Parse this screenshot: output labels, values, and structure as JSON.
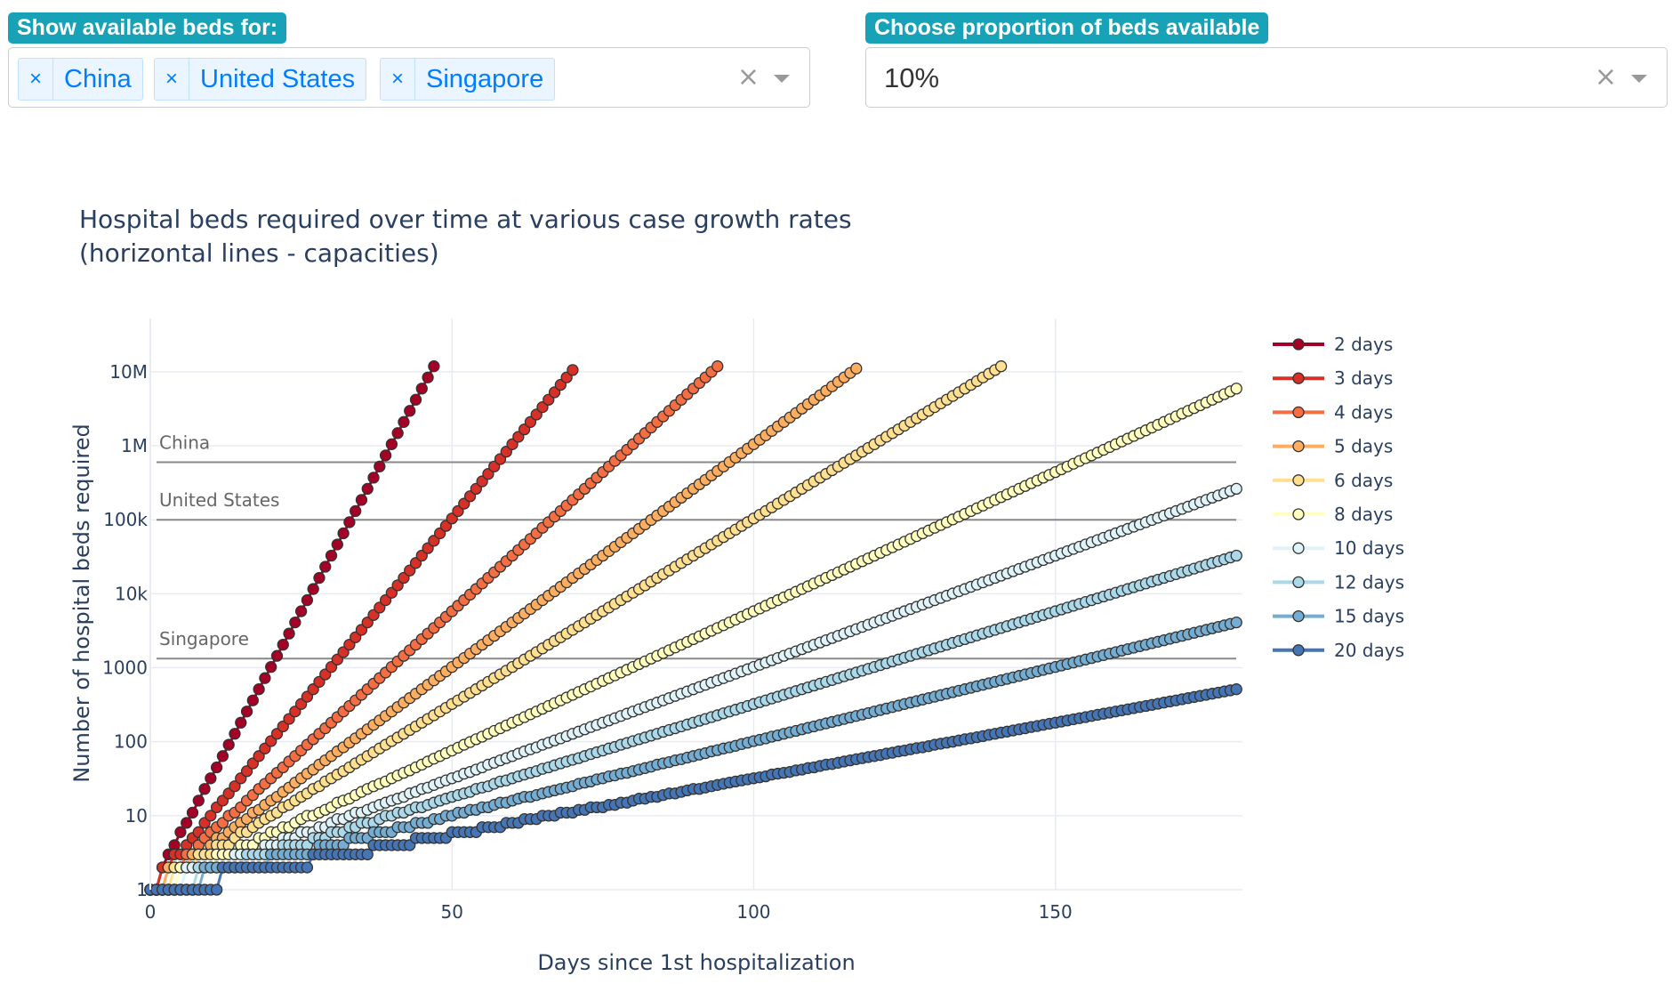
{
  "controls": {
    "countries_label": "Show available beds for:",
    "countries_selected": [
      "China",
      "United States",
      "Singapore"
    ],
    "proportion_label": "Choose proportion of beds available",
    "proportion_value": "10%",
    "clear_symbol": "×",
    "remove_symbol": "×"
  },
  "chart_data": {
    "type": "scatter",
    "mode": "lines+markers",
    "title": [
      "Hospital beds required over time at various case growth rates",
      "(horizontal lines - capacities)"
    ],
    "xlabel": "Days since 1st hospitalization",
    "ylabel": "Number of hospital beds required",
    "y_scale": "log",
    "xlim": [
      0,
      181
    ],
    "ylim_log10": [
      0,
      7.72
    ],
    "x_ticks": [
      0,
      50,
      100,
      150
    ],
    "y_ticks": [
      {
        "value": 1,
        "label": "1"
      },
      {
        "value": 10,
        "label": "10"
      },
      {
        "value": 100,
        "label": "100"
      },
      {
        "value": 1000,
        "label": "1000"
      },
      {
        "value": 10000,
        "label": "10k"
      },
      {
        "value": 100000,
        "label": "100k"
      },
      {
        "value": 1000000,
        "label": "1M"
      },
      {
        "value": 10000000,
        "label": "10M"
      }
    ],
    "series": [
      {
        "name": "2 days",
        "doubling_days": 2,
        "x_end": 47,
        "color": "#a50026"
      },
      {
        "name": "3 days",
        "doubling_days": 3,
        "x_end": 70,
        "color": "#d73027"
      },
      {
        "name": "4 days",
        "doubling_days": 4,
        "x_end": 94,
        "color": "#f46d43"
      },
      {
        "name": "5 days",
        "doubling_days": 5,
        "x_end": 117,
        "color": "#fdae61"
      },
      {
        "name": "6 days",
        "doubling_days": 6,
        "x_end": 141,
        "color": "#fee090"
      },
      {
        "name": "8 days",
        "doubling_days": 8,
        "x_end": 180,
        "color": "#ffffbf"
      },
      {
        "name": "10 days",
        "doubling_days": 10,
        "x_end": 180,
        "color": "#e0f3f8"
      },
      {
        "name": "12 days",
        "doubling_days": 12,
        "x_end": 180,
        "color": "#abd9e9"
      },
      {
        "name": "15 days",
        "doubling_days": 15,
        "x_end": 180,
        "color": "#74add1"
      },
      {
        "name": "20 days",
        "doubling_days": 20,
        "x_end": 180,
        "color": "#4575b4"
      }
    ],
    "capacities": [
      {
        "name": "China",
        "value": 600000
      },
      {
        "name": "United States",
        "value": 100000
      },
      {
        "name": "Singapore",
        "value": 1330
      }
    ]
  }
}
